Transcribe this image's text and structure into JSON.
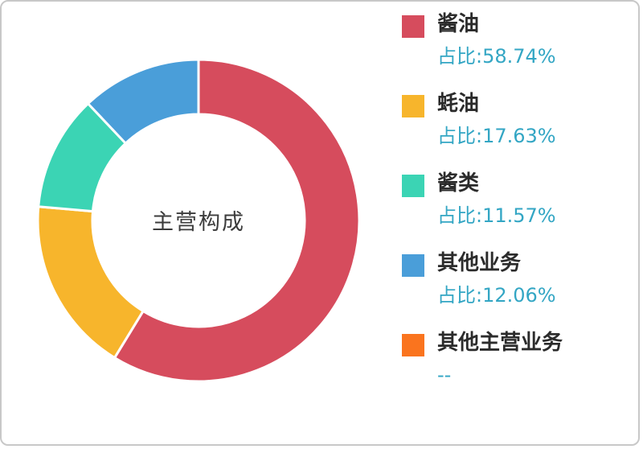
{
  "chart_data": {
    "type": "pie",
    "donut": true,
    "title": "主营构成",
    "categories": [
      "酱油",
      "蚝油",
      "酱类",
      "其他业务",
      "其他主营业务"
    ],
    "values": [
      58.74,
      17.63,
      11.57,
      12.06,
      0
    ],
    "colors": [
      "#d64c5d",
      "#f7b52c",
      "#3bd4b4",
      "#4a9ed9",
      "#fa741e"
    ],
    "legend_position": "right",
    "legend": [
      {
        "label": "酱油",
        "percent_label": "占比:58.74%"
      },
      {
        "label": "蚝油",
        "percent_label": "占比:17.63%"
      },
      {
        "label": "酱类",
        "percent_label": "占比:11.57%"
      },
      {
        "label": "其他业务",
        "percent_label": "占比:12.06%"
      },
      {
        "label": "其他主营业务",
        "percent_label": "--"
      }
    ]
  },
  "colors": {
    "percent_text": "#33a6c4",
    "label_text": "#2b2b2b"
  }
}
